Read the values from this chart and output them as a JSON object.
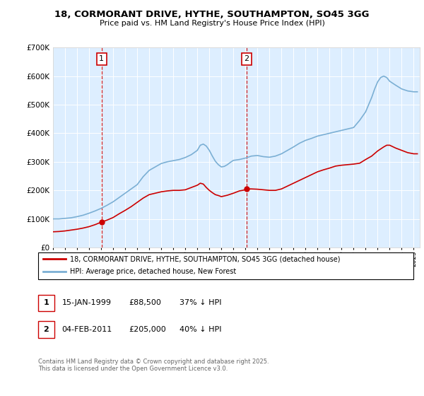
{
  "title": "18, CORMORANT DRIVE, HYTHE, SOUTHAMPTON, SO45 3GG",
  "subtitle": "Price paid vs. HM Land Registry's House Price Index (HPI)",
  "legend_line1": "18, CORMORANT DRIVE, HYTHE, SOUTHAMPTON, SO45 3GG (detached house)",
  "legend_line2": "HPI: Average price, detached house, New Forest",
  "transaction1_date": "15-JAN-1999",
  "transaction1_price": "£88,500",
  "transaction1_hpi": "37% ↓ HPI",
  "transaction2_date": "04-FEB-2011",
  "transaction2_price": "£205,000",
  "transaction2_hpi": "40% ↓ HPI",
  "footer": "Contains HM Land Registry data © Crown copyright and database right 2025.\nThis data is licensed under the Open Government Licence v3.0.",
  "red_color": "#cc0000",
  "blue_color": "#7bafd4",
  "background_color": "#ddeeff",
  "grid_color": "#ffffff",
  "ylim": [
    0,
    700000
  ],
  "yticks": [
    0,
    100000,
    200000,
    300000,
    400000,
    500000,
    600000,
    700000
  ],
  "xlim_start": 1995.0,
  "xlim_end": 2025.5,
  "t1_year": 1999.04,
  "t2_year": 2011.09,
  "t1_red_val": 88500,
  "t2_red_val": 205000,
  "hpi_years": [
    1995.0,
    1995.5,
    1996.0,
    1996.5,
    1997.0,
    1997.5,
    1998.0,
    1998.5,
    1999.0,
    1999.5,
    2000.0,
    2000.5,
    2001.0,
    2001.5,
    2002.0,
    2002.5,
    2003.0,
    2003.5,
    2004.0,
    2004.5,
    2005.0,
    2005.5,
    2006.0,
    2006.5,
    2007.0,
    2007.25,
    2007.5,
    2007.75,
    2008.0,
    2008.25,
    2008.5,
    2008.75,
    2009.0,
    2009.25,
    2009.5,
    2009.75,
    2010.0,
    2010.5,
    2011.0,
    2011.5,
    2012.0,
    2012.5,
    2013.0,
    2013.5,
    2014.0,
    2014.5,
    2015.0,
    2015.5,
    2016.0,
    2016.5,
    2017.0,
    2017.5,
    2018.0,
    2018.5,
    2019.0,
    2019.5,
    2020.0,
    2020.5,
    2021.0,
    2021.25,
    2021.5,
    2021.75,
    2022.0,
    2022.25,
    2022.5,
    2022.75,
    2023.0,
    2023.5,
    2024.0,
    2024.5,
    2025.0,
    2025.3
  ],
  "hpi_vals": [
    100000,
    100000,
    102000,
    104000,
    108000,
    113000,
    120000,
    128000,
    137000,
    148000,
    160000,
    175000,
    190000,
    205000,
    220000,
    248000,
    270000,
    282000,
    294000,
    300000,
    304000,
    308000,
    315000,
    325000,
    340000,
    358000,
    362000,
    355000,
    340000,
    320000,
    302000,
    290000,
    282000,
    284000,
    290000,
    298000,
    305000,
    308000,
    313000,
    320000,
    322000,
    318000,
    316000,
    320000,
    328000,
    340000,
    352000,
    365000,
    375000,
    382000,
    390000,
    395000,
    400000,
    405000,
    410000,
    415000,
    420000,
    445000,
    475000,
    500000,
    525000,
    555000,
    580000,
    595000,
    600000,
    595000,
    582000,
    568000,
    555000,
    548000,
    545000,
    545000
  ],
  "red_years": [
    1995.0,
    1995.5,
    1996.0,
    1996.5,
    1997.0,
    1997.5,
    1998.0,
    1998.5,
    1999.0,
    1999.5,
    2000.0,
    2000.5,
    2001.0,
    2001.5,
    2002.0,
    2002.5,
    2003.0,
    2003.5,
    2004.0,
    2004.5,
    2005.0,
    2005.5,
    2006.0,
    2006.5,
    2007.0,
    2007.25,
    2007.5,
    2007.75,
    2008.0,
    2008.25,
    2008.5,
    2008.75,
    2009.0,
    2009.5,
    2010.0,
    2010.5,
    2011.0,
    2011.09,
    2011.5,
    2012.0,
    2012.5,
    2013.0,
    2013.5,
    2014.0,
    2014.5,
    2015.0,
    2015.5,
    2016.0,
    2016.5,
    2017.0,
    2017.5,
    2018.0,
    2018.5,
    2019.0,
    2019.5,
    2020.0,
    2020.5,
    2021.0,
    2021.5,
    2022.0,
    2022.5,
    2022.75,
    2023.0,
    2023.5,
    2024.0,
    2024.5,
    2025.0,
    2025.3
  ],
  "red_vals": [
    55000,
    56000,
    58000,
    61000,
    64000,
    68000,
    73000,
    80000,
    88500,
    96000,
    105000,
    118000,
    130000,
    143000,
    158000,
    173000,
    185000,
    190000,
    195000,
    198000,
    200000,
    200000,
    202000,
    210000,
    218000,
    225000,
    222000,
    210000,
    200000,
    192000,
    185000,
    182000,
    178000,
    183000,
    190000,
    198000,
    202000,
    205000,
    205000,
    204000,
    202000,
    200000,
    200000,
    205000,
    215000,
    225000,
    235000,
    245000,
    255000,
    265000,
    272000,
    278000,
    285000,
    288000,
    290000,
    292000,
    295000,
    308000,
    320000,
    338000,
    352000,
    358000,
    358000,
    348000,
    340000,
    332000,
    328000,
    328000
  ]
}
